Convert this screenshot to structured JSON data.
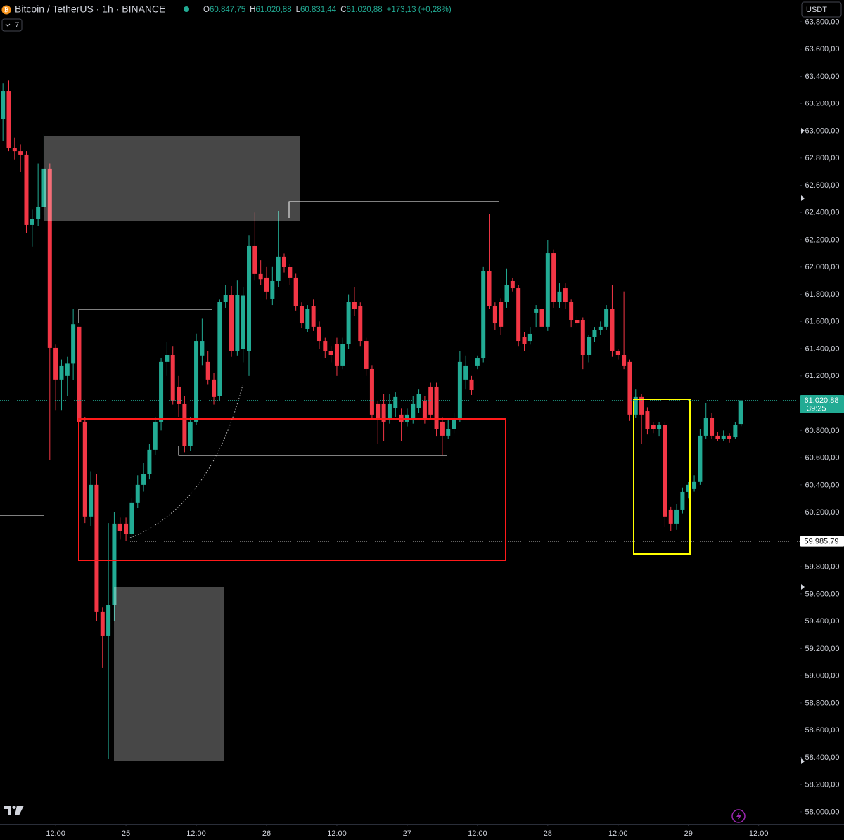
{
  "header": {
    "symbol": "Bitcoin / TetherUS · 1h · BINANCE",
    "ohlc": [
      {
        "key": "O",
        "value": "60.847,75"
      },
      {
        "key": "H",
        "value": "61.020,88"
      },
      {
        "key": "L",
        "value": "60.831,44"
      },
      {
        "key": "C",
        "value": "61.020,88"
      }
    ],
    "change": "+173,13 (+0,28%)",
    "indicator_count": "7",
    "currency": "USDT"
  },
  "chart_data": {
    "type": "candlestick",
    "up_color": "#22ab94",
    "down_color": "#f23645",
    "xlim": [
      -21.5,
      115
    ],
    "ylim": [
      57912,
      63960
    ],
    "xticks": [
      {
        "value": -12,
        "label": "12:00"
      },
      {
        "value": 0,
        "label": "25"
      },
      {
        "value": 12,
        "label": "12:00"
      },
      {
        "value": 24,
        "label": "26"
      },
      {
        "value": 36,
        "label": "12:00"
      },
      {
        "value": 48,
        "label": "27"
      },
      {
        "value": 60,
        "label": "12:00"
      },
      {
        "value": 72,
        "label": "28"
      },
      {
        "value": 84,
        "label": "12:00"
      },
      {
        "value": 96,
        "label": "29"
      },
      {
        "value": 108,
        "label": "12:00"
      }
    ],
    "yticks": [
      {
        "value": 58000,
        "label": "58.000,00"
      },
      {
        "value": 58200,
        "label": "58.200,00"
      },
      {
        "value": 58400,
        "label": "58.400,00"
      },
      {
        "value": 58600,
        "label": "58.600,00"
      },
      {
        "value": 58800,
        "label": "58.800,00"
      },
      {
        "value": 59000,
        "label": "59.000,00"
      },
      {
        "value": 59200,
        "label": "59.200,00"
      },
      {
        "value": 59400,
        "label": "59.400,00"
      },
      {
        "value": 59600,
        "label": "59.600,00"
      },
      {
        "value": 59800,
        "label": "59.800,00"
      },
      {
        "value": 60000,
        "label": "60.000,00"
      },
      {
        "value": 60200,
        "label": "60.200,00"
      },
      {
        "value": 60400,
        "label": "60.400,00"
      },
      {
        "value": 60600,
        "label": "60.600,00"
      },
      {
        "value": 60800,
        "label": "60.800,00"
      },
      {
        "value": 61000,
        "label": "61.000,00"
      },
      {
        "value": 61200,
        "label": "61.200,00"
      },
      {
        "value": 61400,
        "label": "61.400,00"
      },
      {
        "value": 61600,
        "label": "61.600,00"
      },
      {
        "value": 61800,
        "label": "61.800,00"
      },
      {
        "value": 62000,
        "label": "62.000,00"
      },
      {
        "value": 62200,
        "label": "62.200,00"
      },
      {
        "value": 62400,
        "label": "62.400,00"
      },
      {
        "value": 62600,
        "label": "62.600,00"
      },
      {
        "value": 62800,
        "label": "62.800,00"
      },
      {
        "value": 63000,
        "label": "63.000,00"
      },
      {
        "value": 63200,
        "label": "63.200,00"
      },
      {
        "value": 63400,
        "label": "63.400,00"
      },
      {
        "value": 63600,
        "label": "63.600,00"
      },
      {
        "value": 63800,
        "label": "63.800,00"
      }
    ],
    "price_labels": [
      {
        "value": 61020.88,
        "label": "61.020,88",
        "countdown": "39:25",
        "color": "#22ab94"
      },
      {
        "value": 59985.79,
        "label": "59.985,79",
        "color": "#ffffff"
      }
    ],
    "candles": [
      {
        "x": -21,
        "open": 63083,
        "high": 63350,
        "low": 62928,
        "close": 63289
      },
      {
        "x": -20,
        "open": 63289,
        "high": 63370,
        "low": 62850,
        "close": 62876
      },
      {
        "x": -19,
        "open": 62876,
        "high": 62950,
        "low": 62790,
        "close": 62850
      },
      {
        "x": -18,
        "open": 62850,
        "high": 62900,
        "low": 62700,
        "close": 62825
      },
      {
        "x": -17,
        "open": 62825,
        "high": 62850,
        "low": 62250,
        "close": 62309
      },
      {
        "x": -16,
        "open": 62309,
        "high": 62420,
        "low": 62150,
        "close": 62350
      },
      {
        "x": -15,
        "open": 62350,
        "high": 62760,
        "low": 62300,
        "close": 62438
      },
      {
        "x": -14,
        "open": 62438,
        "high": 62980,
        "low": 62380,
        "close": 62722
      },
      {
        "x": -13,
        "open": 62722,
        "high": 62760,
        "low": 60580,
        "close": 61406
      },
      {
        "x": -12,
        "open": 61406,
        "high": 61430,
        "low": 60950,
        "close": 61174
      },
      {
        "x": -11,
        "open": 61174,
        "high": 61320,
        "low": 60950,
        "close": 61277
      },
      {
        "x": -10,
        "open": 61200,
        "high": 61340,
        "low": 61050,
        "close": 61290
      },
      {
        "x": -9,
        "open": 61290,
        "high": 61690,
        "low": 61170,
        "close": 61580
      },
      {
        "x": -8,
        "open": 61561,
        "high": 61680,
        "low": 60800,
        "close": 60864
      },
      {
        "x": -7,
        "open": 60864,
        "high": 60900,
        "low": 60120,
        "close": 60168
      },
      {
        "x": -6,
        "open": 60168,
        "high": 60500,
        "low": 60100,
        "close": 60400
      },
      {
        "x": -5,
        "open": 60400,
        "high": 60480,
        "low": 59400,
        "close": 59471
      },
      {
        "x": -4,
        "open": 59471,
        "high": 59500,
        "low": 59058,
        "close": 59290
      },
      {
        "x": -3,
        "open": 59290,
        "high": 60120,
        "low": 58387,
        "close": 59522
      },
      {
        "x": -2,
        "open": 59522,
        "high": 60200,
        "low": 59400,
        "close": 60116
      },
      {
        "x": -1,
        "open": 60116,
        "high": 60160,
        "low": 60000,
        "close": 60064
      },
      {
        "x": 0,
        "open": 60116,
        "high": 60160,
        "low": 59990,
        "close": 60038
      },
      {
        "x": 1,
        "open": 60038,
        "high": 60300,
        "low": 60000,
        "close": 60271
      },
      {
        "x": 2,
        "open": 60271,
        "high": 60470,
        "low": 60230,
        "close": 60400
      },
      {
        "x": 3,
        "open": 60400,
        "high": 60560,
        "low": 60350,
        "close": 60477
      },
      {
        "x": 4,
        "open": 60477,
        "high": 60700,
        "low": 60440,
        "close": 60658
      },
      {
        "x": 5,
        "open": 60658,
        "high": 60900,
        "low": 60620,
        "close": 60864
      },
      {
        "x": 6,
        "open": 60864,
        "high": 61330,
        "low": 60800,
        "close": 61303
      },
      {
        "x": 7,
        "open": 61303,
        "high": 61450,
        "low": 61200,
        "close": 61354
      },
      {
        "x": 8,
        "open": 61354,
        "high": 61420,
        "low": 60990,
        "close": 61019
      },
      {
        "x": 9,
        "open": 61122,
        "high": 61200,
        "low": 60900,
        "close": 60993
      },
      {
        "x": 10,
        "open": 60993,
        "high": 61050,
        "low": 60640,
        "close": 60684
      },
      {
        "x": 11,
        "open": 60684,
        "high": 60900,
        "low": 60650,
        "close": 60864
      },
      {
        "x": 12,
        "open": 60864,
        "high": 61510,
        "low": 60840,
        "close": 61457
      },
      {
        "x": 13,
        "open": 61350,
        "high": 61620,
        "low": 61280,
        "close": 61457
      },
      {
        "x": 14,
        "open": 61303,
        "high": 61380,
        "low": 61140,
        "close": 61174
      },
      {
        "x": 15,
        "open": 61174,
        "high": 61220,
        "low": 60990,
        "close": 61045
      },
      {
        "x": 16,
        "open": 61050,
        "high": 61760,
        "low": 61020,
        "close": 61741
      },
      {
        "x": 17,
        "open": 61741,
        "high": 61870,
        "low": 61700,
        "close": 61793
      },
      {
        "x": 18,
        "open": 61793,
        "high": 61860,
        "low": 61340,
        "close": 61380
      },
      {
        "x": 19,
        "open": 61380,
        "high": 61900,
        "low": 61350,
        "close": 61793
      },
      {
        "x": 20,
        "open": 61400,
        "high": 61850,
        "low": 61300,
        "close": 61790
      },
      {
        "x": 21,
        "open": 61380,
        "high": 62230,
        "low": 61200,
        "close": 62154
      },
      {
        "x": 22,
        "open": 62154,
        "high": 62400,
        "low": 61900,
        "close": 61948
      },
      {
        "x": 23,
        "open": 61948,
        "high": 62050,
        "low": 61870,
        "close": 61910
      },
      {
        "x": 24,
        "open": 61922,
        "high": 62000,
        "low": 61760,
        "close": 61819
      },
      {
        "x": 25,
        "open": 61767,
        "high": 62000,
        "low": 61720,
        "close": 61896
      },
      {
        "x": 26,
        "open": 61896,
        "high": 62412,
        "low": 61850,
        "close": 62077
      },
      {
        "x": 27,
        "open": 62077,
        "high": 62100,
        "low": 61960,
        "close": 61999
      },
      {
        "x": 28,
        "open": 61999,
        "high": 62020,
        "low": 61870,
        "close": 61922
      },
      {
        "x": 29,
        "open": 61922,
        "high": 61950,
        "low": 61680,
        "close": 61715
      },
      {
        "x": 30,
        "open": 61715,
        "high": 61740,
        "low": 61550,
        "close": 61586
      },
      {
        "x": 31,
        "open": 61545,
        "high": 61720,
        "low": 61520,
        "close": 61690
      },
      {
        "x": 32,
        "open": 61715,
        "high": 61760,
        "low": 61530,
        "close": 61561
      },
      {
        "x": 33,
        "open": 61561,
        "high": 61600,
        "low": 61400,
        "close": 61457
      },
      {
        "x": 34,
        "open": 61457,
        "high": 61480,
        "low": 61330,
        "close": 61380
      },
      {
        "x": 35,
        "open": 61380,
        "high": 61420,
        "low": 61300,
        "close": 61354
      },
      {
        "x": 36,
        "open": 61432,
        "high": 61480,
        "low": 61200,
        "close": 61277
      },
      {
        "x": 37,
        "open": 61277,
        "high": 61480,
        "low": 61250,
        "close": 61432
      },
      {
        "x": 38,
        "open": 61432,
        "high": 61800,
        "low": 61400,
        "close": 61741
      },
      {
        "x": 39,
        "open": 61741,
        "high": 61850,
        "low": 61640,
        "close": 61690
      },
      {
        "x": 40,
        "open": 61715,
        "high": 61740,
        "low": 61420,
        "close": 61457
      },
      {
        "x": 41,
        "open": 61457,
        "high": 61480,
        "low": 61200,
        "close": 61251
      },
      {
        "x": 42,
        "open": 61251,
        "high": 61280,
        "low": 60880,
        "close": 60916
      },
      {
        "x": 43,
        "open": 60993,
        "high": 61020,
        "low": 60700,
        "close": 60890
      },
      {
        "x": 44,
        "open": 60993,
        "high": 61070,
        "low": 60720,
        "close": 60864
      },
      {
        "x": 45,
        "open": 60890,
        "high": 61070,
        "low": 60850,
        "close": 60993
      },
      {
        "x": 46,
        "open": 60967,
        "high": 61080,
        "low": 60900,
        "close": 61045
      },
      {
        "x": 47,
        "open": 60916,
        "high": 60960,
        "low": 60720,
        "close": 60864
      },
      {
        "x": 48,
        "open": 60864,
        "high": 60960,
        "low": 60830,
        "close": 60916
      },
      {
        "x": 49,
        "open": 60890,
        "high": 61050,
        "low": 60850,
        "close": 60993
      },
      {
        "x": 50,
        "open": 60967,
        "high": 61100,
        "low": 60930,
        "close": 61070
      },
      {
        "x": 51,
        "open": 61019,
        "high": 61050,
        "low": 60850,
        "close": 60890
      },
      {
        "x": 52,
        "open": 61122,
        "high": 61150,
        "low": 60880,
        "close": 60916
      },
      {
        "x": 53,
        "open": 61122,
        "high": 61150,
        "low": 60760,
        "close": 60812
      },
      {
        "x": 54,
        "open": 60864,
        "high": 60900,
        "low": 60620,
        "close": 60761
      },
      {
        "x": 55,
        "open": 60761,
        "high": 60880,
        "low": 60740,
        "close": 60812
      },
      {
        "x": 56,
        "open": 60812,
        "high": 60930,
        "low": 60780,
        "close": 60890
      },
      {
        "x": 57,
        "open": 60890,
        "high": 61380,
        "low": 60860,
        "close": 61303
      },
      {
        "x": 58,
        "open": 61174,
        "high": 61350,
        "low": 61100,
        "close": 61277
      },
      {
        "x": 59,
        "open": 61174,
        "high": 61200,
        "low": 61060,
        "close": 61096
      },
      {
        "x": 60,
        "open": 61277,
        "high": 61350,
        "low": 61250,
        "close": 61328
      },
      {
        "x": 61,
        "open": 61328,
        "high": 62000,
        "low": 61300,
        "close": 61973
      },
      {
        "x": 62,
        "open": 61973,
        "high": 62386,
        "low": 61690,
        "close": 61715
      },
      {
        "x": 63,
        "open": 61715,
        "high": 61740,
        "low": 61540,
        "close": 61586
      },
      {
        "x": 64,
        "open": 61741,
        "high": 61770,
        "low": 61500,
        "close": 61561
      },
      {
        "x": 65,
        "open": 61741,
        "high": 61990,
        "low": 61700,
        "close": 61870
      },
      {
        "x": 66,
        "open": 61896,
        "high": 61920,
        "low": 61820,
        "close": 61844
      },
      {
        "x": 67,
        "open": 61844,
        "high": 61870,
        "low": 61420,
        "close": 61457
      },
      {
        "x": 68,
        "open": 61483,
        "high": 61520,
        "low": 61380,
        "close": 61432
      },
      {
        "x": 69,
        "open": 61457,
        "high": 61560,
        "low": 61430,
        "close": 61509
      },
      {
        "x": 70,
        "open": 61664,
        "high": 61720,
        "low": 61560,
        "close": 61690
      },
      {
        "x": 71,
        "open": 61690,
        "high": 61750,
        "low": 61540,
        "close": 61561
      },
      {
        "x": 72,
        "open": 61561,
        "high": 62200,
        "low": 61530,
        "close": 62102
      },
      {
        "x": 73,
        "open": 62102,
        "high": 62130,
        "low": 61700,
        "close": 61741
      },
      {
        "x": 74,
        "open": 61741,
        "high": 61880,
        "low": 61700,
        "close": 61819
      },
      {
        "x": 75,
        "open": 61844,
        "high": 61880,
        "low": 61690,
        "close": 61741
      },
      {
        "x": 76,
        "open": 61741,
        "high": 61760,
        "low": 61560,
        "close": 61612
      },
      {
        "x": 77,
        "open": 61612,
        "high": 61640,
        "low": 61560,
        "close": 61586
      },
      {
        "x": 78,
        "open": 61612,
        "high": 61630,
        "low": 61250,
        "close": 61354
      },
      {
        "x": 79,
        "open": 61354,
        "high": 61500,
        "low": 61300,
        "close": 61483
      },
      {
        "x": 80,
        "open": 61483,
        "high": 61560,
        "low": 61450,
        "close": 61535
      },
      {
        "x": 81,
        "open": 61535,
        "high": 61600,
        "low": 61500,
        "close": 61561
      },
      {
        "x": 82,
        "open": 61561,
        "high": 61720,
        "low": 61540,
        "close": 61690
      },
      {
        "x": 83,
        "open": 61690,
        "high": 61870,
        "low": 61340,
        "close": 61380
      },
      {
        "x": 84,
        "open": 61380,
        "high": 61400,
        "low": 61320,
        "close": 61354
      },
      {
        "x": 85,
        "open": 61354,
        "high": 61820,
        "low": 61250,
        "close": 61277
      },
      {
        "x": 86,
        "open": 61303,
        "high": 61320,
        "low": 60870,
        "close": 60916
      },
      {
        "x": 87,
        "open": 60916,
        "high": 61100,
        "low": 60890,
        "close": 61045
      },
      {
        "x": 88,
        "open": 61045,
        "high": 61070,
        "low": 60700,
        "close": 60916
      },
      {
        "x": 89,
        "open": 60941,
        "high": 60970,
        "low": 60770,
        "close": 60812
      },
      {
        "x": 90,
        "open": 60838,
        "high": 60860,
        "low": 60780,
        "close": 60812
      },
      {
        "x": 91,
        "open": 60812,
        "high": 60860,
        "low": 60760,
        "close": 60838
      },
      {
        "x": 92,
        "open": 60838,
        "high": 60860,
        "low": 60090,
        "close": 60168
      },
      {
        "x": 93,
        "open": 60219,
        "high": 60240,
        "low": 60060,
        "close": 60116
      },
      {
        "x": 94,
        "open": 60116,
        "high": 60260,
        "low": 60070,
        "close": 60219
      },
      {
        "x": 95,
        "open": 60219,
        "high": 60380,
        "low": 60190,
        "close": 60348
      },
      {
        "x": 96,
        "open": 60348,
        "high": 60420,
        "low": 60300,
        "close": 60400
      },
      {
        "x": 97,
        "open": 60374,
        "high": 60470,
        "low": 60350,
        "close": 60426
      },
      {
        "x": 98,
        "open": 60426,
        "high": 60810,
        "low": 60400,
        "close": 60761
      },
      {
        "x": 99,
        "open": 60761,
        "high": 61000,
        "low": 60740,
        "close": 60890
      },
      {
        "x": 100,
        "open": 60890,
        "high": 60930,
        "low": 60740,
        "close": 60761
      },
      {
        "x": 101,
        "open": 60761,
        "high": 60790,
        "low": 60720,
        "close": 60735
      },
      {
        "x": 102,
        "open": 60735,
        "high": 60800,
        "low": 60720,
        "close": 60761
      },
      {
        "x": 103,
        "open": 60761,
        "high": 60780,
        "low": 60710,
        "close": 60735
      },
      {
        "x": 104,
        "open": 60750,
        "high": 60860,
        "low": 60740,
        "close": 60838
      },
      {
        "x": 105,
        "open": 60847.75,
        "high": 61020.88,
        "low": 60831.44,
        "close": 61020.88
      }
    ]
  }
}
